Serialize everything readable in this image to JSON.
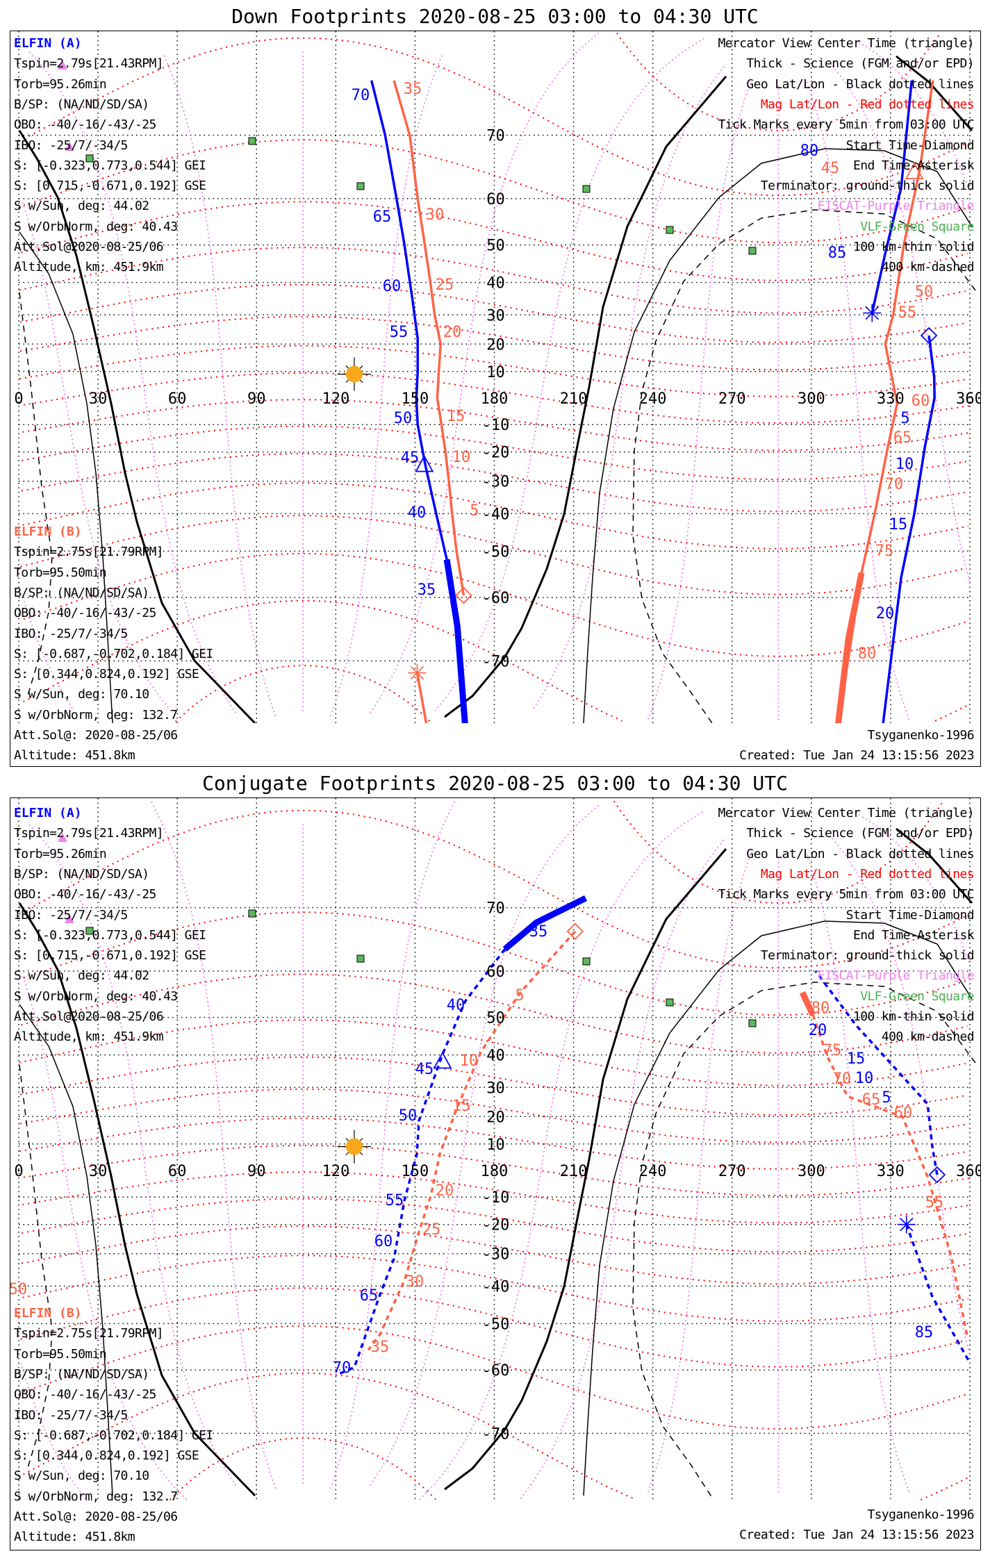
{
  "panels": [
    {
      "title": "Down Footprints 2020-08-25 03:00 to 04:30 UTC",
      "elfin_a": {
        "name": "ELFIN (A)",
        "lines": [
          "Tspin=2.79s[21.43RPM]",
          "Torb=95.26min",
          "B/SP: (NA/ND/SD/SA)",
          "OBO: -40/-16/-43/-25",
          "IBO: -25/7/-34/5",
          "S: [-0.323,0.773,0.544] GEI",
          "S: [0.715,-0.671,0.192] GSE",
          "S w/Sun, deg: 44.02",
          "S w/OrbNorm, deg: 40.43",
          "Att.Sol@2020-08-25/06",
          "Altitude, km: 451.9km"
        ]
      },
      "elfin_b": {
        "name": "ELFIN (B)",
        "lines": [
          "Tspin=2.75s[21.79RPM]",
          "Torb=95.50min",
          "B/SP: (NA/ND/SD/SA)",
          "OBO: -40/-16/-43/-25",
          "IBO: -25/7/-34/5",
          "S: [-0.687,-0.702,0.184] GEI",
          "S: [0.344,0.824,0.192] GSE",
          "S w/Sun, deg: 70.10",
          "S w/OrbNorm, deg: 132.7",
          "Att.Sol@: 2020-08-25/06",
          "Altitude: 451.8km"
        ]
      },
      "legend": [
        {
          "text": "Mercator View Center Time (triangle)",
          "color": "#000000"
        },
        {
          "text": "Thick - Science (FGM and/or EPD)",
          "color": "#000000"
        },
        {
          "text": "Geo Lat/Lon - Black dotted lines",
          "color": "#000000"
        },
        {
          "text": "Mag Lat/Lon - Red dotted lines",
          "color": "#ff0000"
        },
        {
          "text": "Tick Marks every 5min from 03:00 UTC",
          "color": "#000000"
        },
        {
          "text": "Start Time-Diamond",
          "color": "#000000"
        },
        {
          "text": "End Time-Asterisk",
          "color": "#000000"
        },
        {
          "text": "Terminator: ground-thick solid",
          "color": "#000000"
        },
        {
          "text": "EISCAT-Purple Triangle",
          "color": "#ee82ee"
        },
        {
          "text": "VLF-Green Square",
          "color": "#4caf50"
        },
        {
          "text": "100 km-thin solid",
          "color": "#000000"
        },
        {
          "text": "400 km-dashed",
          "color": "#000000"
        }
      ],
      "model": "Tsyganenko-1996",
      "created": "Created: Tue Jan 24 13:15:56 2023"
    },
    {
      "title": "Conjugate Footprints 2020-08-25 03:00 to 04:30 UTC",
      "elfin_a": {
        "name": "ELFIN (A)",
        "lines": [
          "Tspin=2.79s[21.43RPM]",
          "Torb=95.26min",
          "B/SP: (NA/ND/SD/SA)",
          "OBO: -40/-16/-43/-25",
          "IBO: -25/7/-34/5",
          "S: [-0.323,0.773,0.544] GEI",
          "S: [0.715,-0.671,0.192] GSE",
          "S w/Sun, deg: 44.02",
          "S w/OrbNorm, deg: 40.43",
          "Att.Sol@2020-08-25/06",
          "Altitude, km: 451.9km"
        ]
      },
      "elfin_b": {
        "name": "ELFIN (B)",
        "lines": [
          "Tspin=2.75s[21.79RPM]",
          "Torb=95.50min",
          "B/SP: (NA/ND/SD/SA)",
          "OBO: -40/-16/-43/-25",
          "IBO: -25/7/-34/5",
          "S: [-0.687,-0.702,0.184] GEI",
          "S: [0.344,0.824,0.192] GSE",
          "S w/Sun, deg: 70.10",
          "S w/OrbNorm, deg: 132.7",
          "Att.Sol@: 2020-08-25/06",
          "Altitude: 451.8km"
        ]
      },
      "legend": [
        {
          "text": "Mercator View Center Time (triangle)",
          "color": "#000000"
        },
        {
          "text": "Thick - Science (FGM and/or EPD)",
          "color": "#000000"
        },
        {
          "text": "Geo Lat/Lon - Black dotted lines",
          "color": "#000000"
        },
        {
          "text": "Mag Lat/Lon - Red dotted lines",
          "color": "#ff0000"
        },
        {
          "text": "Tick Marks every 5min from 03:00 UTC",
          "color": "#000000"
        },
        {
          "text": "Start Time-Diamond",
          "color": "#000000"
        },
        {
          "text": "End Time-Asterisk",
          "color": "#000000"
        },
        {
          "text": "Terminator: ground-thick solid",
          "color": "#000000"
        },
        {
          "text": "EISCAT-Purple Triangle",
          "color": "#ee82ee"
        },
        {
          "text": "VLF-Green Square",
          "color": "#4caf50"
        },
        {
          "text": "100 km-thin solid",
          "color": "#000000"
        },
        {
          "text": "400 km-dashed",
          "color": "#000000"
        }
      ],
      "model": "Tsyganenko-1996",
      "created": "Created: Tue Jan 24 13:15:56 2023"
    }
  ],
  "colors": {
    "elfin_a": "#0000ff",
    "elfin_b": "#ff6347",
    "mag_grid": "#ff0000",
    "mag_lon": "#ee82ee",
    "vlf": "#5cb85c",
    "sun": "#f7a81b"
  },
  "chart_data": [
    {
      "type": "map",
      "projection": "Mercator",
      "lon_ticks": [
        0,
        30,
        60,
        90,
        120,
        150,
        180,
        210,
        240,
        270,
        300,
        330,
        360
      ],
      "lat_ticks": [
        70,
        60,
        50,
        40,
        30,
        20,
        10,
        -10,
        -20,
        -30,
        -40,
        -50,
        -60,
        -70
      ],
      "sun": [
        127,
        9
      ],
      "tracks": [
        {
          "sat": "A",
          "segments": [
            {
              "style": "solid",
              "science": false,
              "points": [
                [
                  169,
                  -77
                ],
                [
                  166,
                  -65
                ],
                [
                  162,
                  -52
                ],
                [
                  158,
                  -40
                ],
                [
                  154,
                  -25
                ],
                [
                  151,
                  -10
                ],
                [
                  150.5,
                  0
                ],
                [
                  151,
                  10
                ],
                [
                  151,
                  22
                ],
                [
                  149,
                  35
                ],
                [
                  146,
                  50
                ],
                [
                  143,
                  60
                ],
                [
                  138.7,
                  70
                ],
                [
                  133.5,
                  76
                ]
              ]
            },
            {
              "style": "solid",
              "science": true,
              "points": [
                [
                  169,
                  -77
                ],
                [
                  166,
                  -65
                ],
                [
                  162,
                  -52
                ]
              ]
            },
            {
              "style": "solid",
              "science": false,
              "points": [
                [
                  338,
                  76
                ],
                [
                  334,
                  62
                ],
                [
                  328,
                  48
                ],
                [
                  323,
                  30.6
                ]
              ]
            },
            {
              "style": "solid",
              "science": false,
              "points": [
                [
                  344.5,
                  23
                ],
                [
                  346.5,
                  8
                ],
                [
                  346.6,
                  0
                ],
                [
                  343,
                  -18
                ],
                [
                  339,
                  -40
                ],
                [
                  334,
                  -56
                ],
                [
                  327,
                  -77
                ]
              ]
            }
          ],
          "start": [
            344.5,
            23
          ],
          "end": [
            323,
            30.6
          ],
          "center": [
            153.5,
            -24.6
          ],
          "labels": [
            "70",
            "65",
            "60",
            "55",
            "50",
            "45",
            "40",
            "35",
            "80",
            "85",
            "5",
            "10",
            "15",
            "20"
          ]
        },
        {
          "sat": "B",
          "segments": [
            {
              "style": "solid",
              "science": false,
              "points": [
                [
                  168.4,
                  -59.6
                ],
                [
                  165.7,
                  -50
                ],
                [
                  164,
                  -40
                ],
                [
                  162.8,
                  -30
                ],
                [
                  161.5,
                  -20
                ],
                [
                  160,
                  -10
                ],
                [
                  158.4,
                  0
                ],
                [
                  159,
                  10
                ],
                [
                  159.7,
                  20
                ],
                [
                  157.4,
                  30
                ],
                [
                  155.8,
                  40
                ],
                [
                  153.7,
                  50
                ],
                [
                  151,
                  60
                ],
                [
                  148,
                  70
                ],
                [
                  142,
                  76
                ]
              ]
            },
            {
              "style": "solid",
              "science": false,
              "points": [
                [
                  346,
                  76
                ],
                [
                  341,
                  65
                ],
                [
                  335,
                  50
                ],
                [
                  331,
                  30
                ],
                [
                  328,
                  20
                ],
                [
                  332.5,
                  -2
                ],
                [
                  329,
                  -18
                ],
                [
                  324,
                  -40
                ],
                [
                  319,
                  -55
                ],
                [
                  310,
                  -77
                ]
              ]
            },
            {
              "style": "solid",
              "science": true,
              "points": [
                [
                  319,
                  -55
                ],
                [
                  314,
                  -67
                ],
                [
                  310,
                  -77
                ]
              ]
            },
            {
              "style": "solid",
              "science": false,
              "points": [
                [
                  154.5,
                  -77
                ],
                [
                  150.8,
                  -71.5
                ]
              ]
            }
          ],
          "start": [
            168.4,
            -59.6
          ],
          "end": [
            150.8,
            -71.5
          ],
          "center": [
            339,
            64.6
          ],
          "labels": [
            "35",
            "30",
            "25",
            "20",
            "15",
            "10",
            "5",
            "45",
            "50",
            "55",
            "60",
            "65",
            "70",
            "75",
            "80"
          ]
        }
      ]
    },
    {
      "type": "map",
      "projection": "Mercator",
      "lon_ticks": [
        0,
        30,
        60,
        90,
        120,
        150,
        180,
        210,
        240,
        270,
        300,
        330,
        360
      ],
      "lat_ticks": [
        70,
        60,
        50,
        40,
        30,
        20,
        10,
        -10,
        -20,
        -30,
        -40,
        -50,
        -60,
        -70
      ],
      "sun": [
        127,
        9
      ],
      "tracks": [
        {
          "sat": "A",
          "segments": [
            {
              "style": "solid",
              "science": true,
              "points": [
                [
                  214.6,
                  71.2
                ],
                [
                  196,
                  68
                ],
                [
                  184,
                  63.9
                ]
              ]
            },
            {
              "style": "dashed",
              "science": false,
              "points": [
                [
                  184,
                  63.9
                ],
                [
                  169,
                  53.8
                ],
                [
                  160.4,
                  40.2
                ],
                [
                  151.5,
                  18.6
                ],
                [
                  150.7,
                  6.3
                ],
                [
                  146,
                  -11.2
                ],
                [
                  142,
                  -31.7
                ],
                [
                  136.7,
                  -42.5
                ],
                [
                  127,
                  -59.5
                ],
                [
                  120,
                  -61
                ]
              ]
            },
            {
              "style": "dashed",
              "science": false,
              "points": [
                [
                  347.6,
                  -1.6
                ],
                [
                  345.8,
                  8.9
                ],
                [
                  344,
                  24.4
                ],
                [
                  317,
                  48
                ],
                [
                  301.6,
                  60
                ]
              ]
            },
            {
              "style": "dashed",
              "science": false,
              "points": [
                [
                  336,
                  -20
                ],
                [
                  345.8,
                  -43
                ],
                [
                  360,
                  -58.6
                ]
              ]
            }
          ],
          "start": [
            347.6,
            -1.6
          ],
          "end": [
            336,
            -20
          ],
          "center": [
            160.4,
            38
          ],
          "labels": [
            "35",
            "40",
            "45",
            "50",
            "55",
            "60",
            "65",
            "70",
            "20",
            "15",
            "10",
            "5",
            "85"
          ]
        },
        {
          "sat": "B",
          "segments": [
            {
              "style": "dashed",
              "science": false,
              "points": [
                [
                  210.6,
                  66.7
                ],
                [
                  190,
                  55.8
                ],
                [
                  175,
                  41
                ],
                [
                  165.7,
                  22.6
                ],
                [
                  159.4,
                  6.3
                ],
                [
                  156,
                  -9.4
                ],
                [
                  151.5,
                  -22.6
                ],
                [
                  146.2,
                  -37.9
                ],
                [
                  136.7,
                  -52.6
                ],
                [
                  132.3,
                  -56
                ]
              ]
            },
            {
              "style": "solid",
              "science": true,
              "points": [
                [
                  296.6,
                  55.7
                ],
                [
                  300.6,
                  50.6
                ]
              ]
            },
            {
              "style": "dashed",
              "science": false,
              "points": [
                [
                  300.6,
                  50.6
                ],
                [
                  306,
                  39.6
                ],
                [
                  313.7,
                  27
                ],
                [
                  334.5,
                  19.9
                ],
                [
                  344,
                  -2.4
                ],
                [
                  353,
                  -31
                ],
                [
                  359,
                  -53
                ]
              ]
            }
          ],
          "start": [
            210.6,
            66.7
          ],
          "labels": [
            "5",
            "10",
            "15",
            "20",
            "25",
            "30",
            "35",
            "80",
            "75",
            "70",
            "65",
            "60",
            "55",
            "50"
          ]
        }
      ]
    }
  ]
}
